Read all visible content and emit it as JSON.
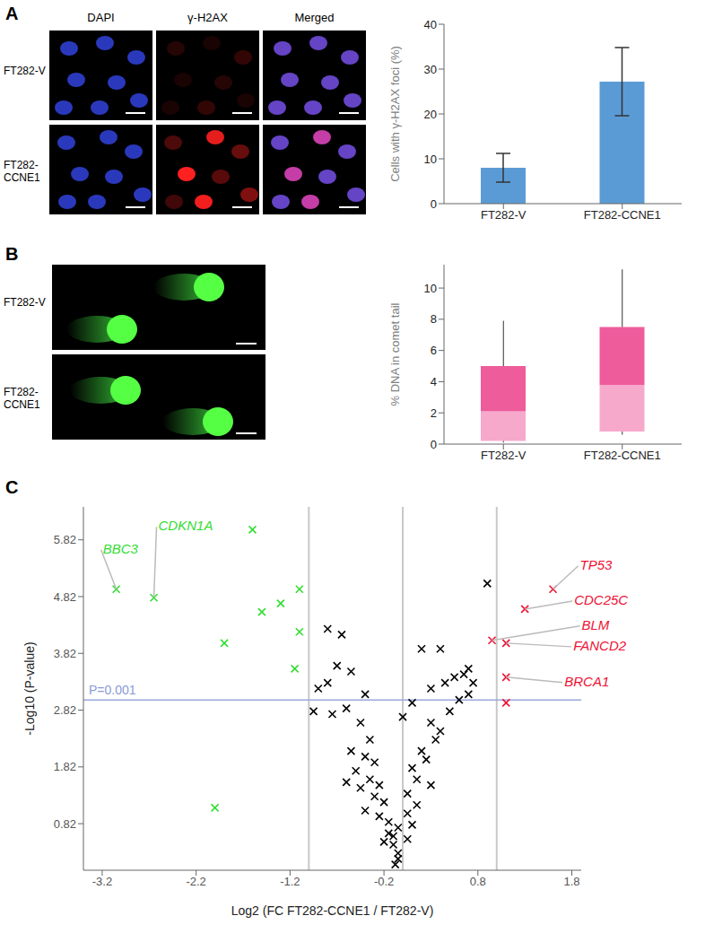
{
  "figure": {
    "panel_labels": [
      "A",
      "B",
      "C"
    ],
    "panel_A_images": {
      "columns": [
        "DAPI",
        "γ-H2AX",
        "Merged"
      ],
      "rows": [
        "FT282-V",
        "FT282-CCNE1"
      ]
    },
    "panel_B_images": {
      "rows": [
        "FT282-V",
        "FT282-CCNE1"
      ]
    }
  },
  "chart_data": [
    {
      "type": "bar",
      "categories": [
        "FT282-V",
        "FT282-CCNE1"
      ],
      "values": [
        8,
        27.2
      ],
      "errors": [
        3.2,
        7.6
      ],
      "color": "#5b9bd5",
      "ylabel": "Cells with γ-H2AX foci (%)",
      "ylim": [
        0,
        40
      ],
      "yticks": [
        0,
        10,
        20,
        30,
        40
      ]
    },
    {
      "type": "box",
      "categories": [
        "FT282-V",
        "FT282-CCNE1"
      ],
      "whisker_low": [
        0.1,
        0.6
      ],
      "q1": [
        0.2,
        0.8
      ],
      "median": [
        2.1,
        3.8
      ],
      "q3": [
        5.0,
        7.5
      ],
      "whisker_high": [
        7.9,
        11.2
      ],
      "colors": [
        "#f7a9cc",
        "#ee5c9c"
      ],
      "ylabel": "% DNA in comet tail",
      "ylim": [
        0,
        11.5
      ],
      "yticks": [
        0,
        2,
        4,
        6,
        8,
        10
      ]
    },
    {
      "type": "scatter",
      "marker": "x",
      "xlabel": "Log2 (FC FT282-CCNE1 / FT282-V)",
      "ylabel": "-Log10 (P-value)",
      "xlim": [
        -3.4,
        1.9
      ],
      "xticks": [
        -3.2,
        -2.2,
        -1.2,
        -0.2,
        0.8,
        1.8
      ],
      "ylim": [
        0,
        6.4
      ],
      "yticks": [
        0.82,
        1.82,
        2.82,
        3.82,
        4.82,
        5.82
      ],
      "reference_lines": {
        "x": [
          -1,
          0,
          1
        ],
        "y": [
          3
        ]
      },
      "annotations": [
        {
          "text": "P=0.001",
          "y": 3
        }
      ],
      "series": [
        {
          "color": "#000000",
          "x": [
            0.9,
            -0.8,
            -0.65,
            -0.7,
            -0.55,
            -0.8,
            -0.4,
            -0.95,
            -0.6,
            -0.75,
            0.2,
            0.4,
            0.7,
            0.65,
            0.55,
            0.75,
            0.45,
            0.3,
            0.7,
            0.1,
            0.0,
            0.3,
            0.4,
            -0.45,
            -0.35,
            -0.55,
            -0.4,
            -0.3,
            -0.5,
            -0.35,
            -0.25,
            -0.45,
            -0.6,
            -0.3,
            -0.2,
            -0.4,
            -0.25,
            -0.15,
            -0.05,
            -0.1,
            -0.2,
            -0.1,
            -0.05,
            -0.05,
            -0.08,
            0.2,
            0.25,
            0.1,
            0.15,
            0.3,
            0.05,
            0.15,
            0.05,
            0.1,
            -0.15,
            0.05,
            0.35,
            0.5,
            0.6,
            -0.9
          ],
          "y": [
            5.05,
            4.25,
            4.15,
            3.6,
            3.5,
            3.3,
            3.1,
            2.8,
            2.85,
            2.75,
            3.9,
            3.9,
            3.55,
            3.45,
            3.4,
            3.3,
            3.3,
            3.2,
            3.1,
            2.95,
            2.7,
            2.6,
            2.45,
            2.6,
            2.3,
            2.1,
            2.0,
            1.9,
            1.75,
            1.6,
            1.5,
            1.45,
            1.55,
            1.3,
            1.2,
            1.05,
            0.95,
            0.85,
            0.75,
            0.6,
            0.5,
            0.45,
            0.3,
            0.2,
            0.1,
            2.1,
            1.95,
            1.8,
            1.6,
            1.5,
            1.35,
            1.15,
            1.0,
            0.8,
            0.65,
            0.55,
            2.3,
            2.8,
            3.0,
            3.2
          ]
        },
        {
          "color": "#33dd33",
          "x": [
            -3.05,
            -2.65,
            -1.6,
            -1.9,
            -1.5,
            -1.3,
            -1.1,
            -1.1,
            -1.15,
            -2.0
          ],
          "y": [
            4.95,
            4.8,
            6.0,
            4.0,
            4.55,
            4.7,
            4.95,
            4.2,
            3.55,
            1.1
          ],
          "point_labels": [
            "BBC3",
            "CDKN1A",
            null,
            null,
            null,
            null,
            null,
            null,
            null,
            null
          ]
        },
        {
          "color": "#ee1133",
          "x": [
            1.6,
            1.3,
            0.95,
            1.1,
            1.1,
            1.1
          ],
          "y": [
            4.95,
            4.6,
            4.05,
            4.0,
            3.4,
            2.95
          ],
          "point_labels": [
            "TP53",
            "CDC25C",
            "BLM",
            "FANCD2",
            "BRCA1",
            null
          ]
        }
      ]
    }
  ]
}
